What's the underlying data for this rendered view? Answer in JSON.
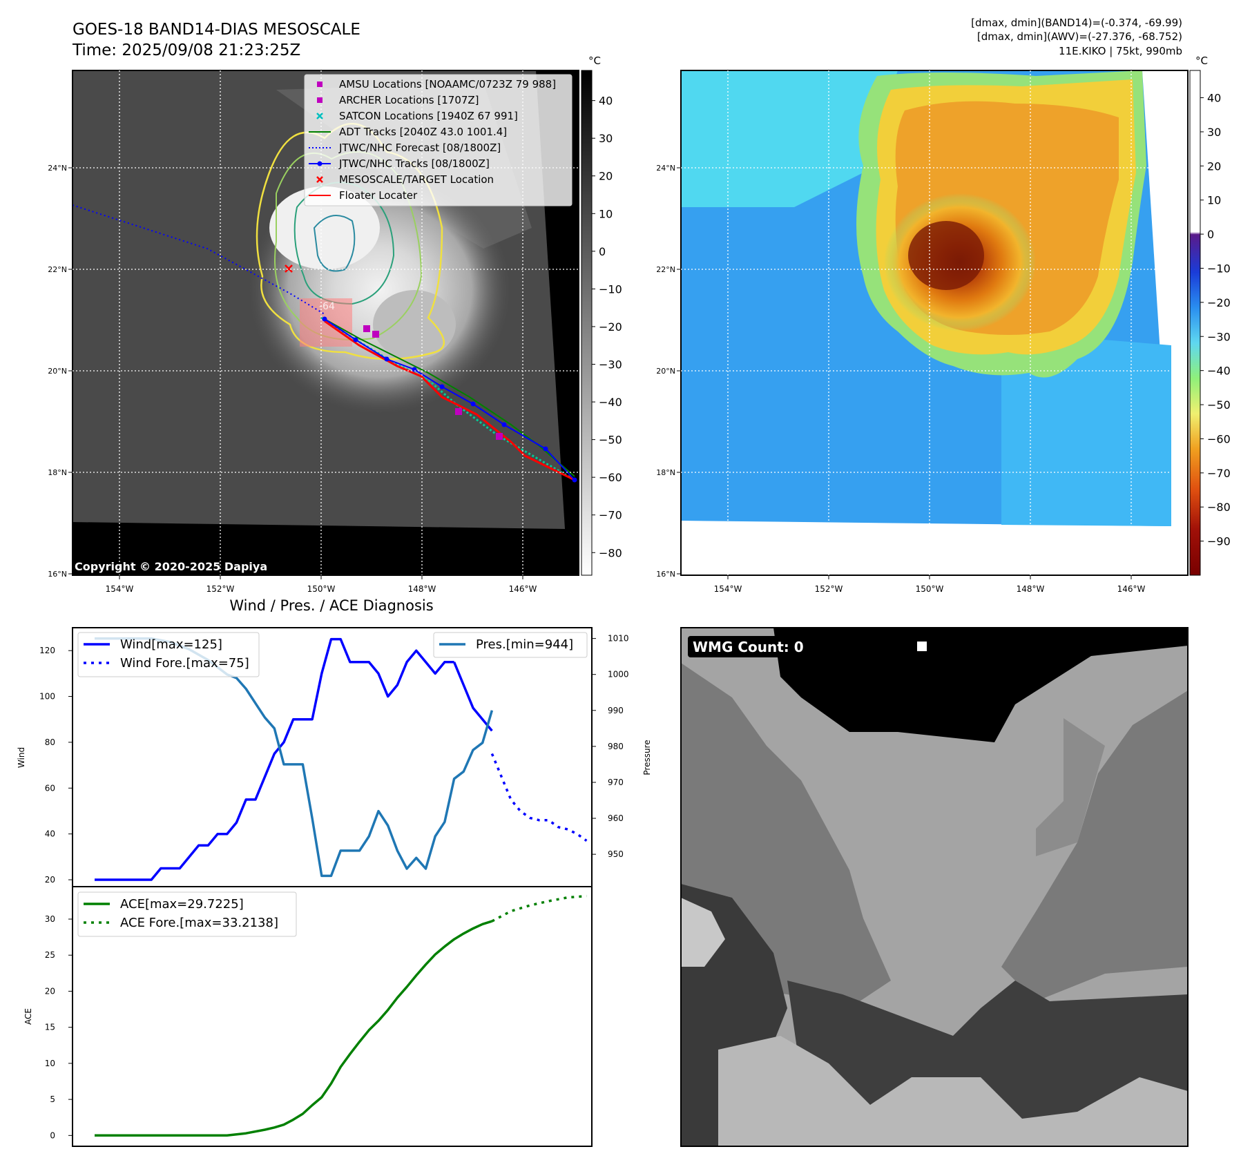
{
  "header": {
    "title_line1": "GOES-18 BAND14-DIAS MESOSCALE",
    "title_line2": "Time: 2025/09/08 21:23:25Z",
    "info_line1": "[dmax, dmin](BAND14)=(-0.374, -69.99)",
    "info_line2": "[dmax, dmin](AWV)=(-27.376, -68.752)",
    "info_line3": "11E.KIKO | 75kt, 990mb"
  },
  "maps": {
    "lon_ticks": [
      "154°W",
      "152°W",
      "150°W",
      "148°W",
      "146°W"
    ],
    "lat_ticks": [
      "24°N",
      "22°N",
      "20°N",
      "18°N",
      "16°N"
    ],
    "lon_values": [
      -154,
      -152,
      -150,
      -148,
      -146
    ],
    "lat_values": [
      24,
      22,
      20,
      18,
      16
    ],
    "copyright": "Copyright © 2020-2025 Dapiya",
    "colorbar_unit": "°C",
    "ir_colorbar_ticks": [
      "40",
      "30",
      "20",
      "10",
      "0",
      "−10",
      "−20",
      "−30",
      "−40",
      "−50",
      "−60",
      "−70",
      "−80"
    ],
    "ir_colorbar_values": [
      40,
      30,
      20,
      10,
      0,
      -10,
      -20,
      -30,
      -40,
      -50,
      -60,
      -70,
      -80
    ],
    "ir_colorbar_range": [
      48,
      -86
    ],
    "awv_colorbar_ticks": [
      "40",
      "30",
      "20",
      "10",
      "0",
      "−10",
      "−20",
      "−30",
      "−40",
      "−50",
      "−60",
      "−70",
      "−80",
      "−90"
    ],
    "awv_colorbar_values": [
      40,
      30,
      20,
      10,
      0,
      -10,
      -20,
      -30,
      -40,
      -50,
      -60,
      -70,
      -80,
      -90
    ],
    "awv_colorbar_range": [
      48,
      -100
    ],
    "legend": [
      {
        "label": "AMSU Locations [NOAAMC/0723Z 79 988]",
        "marker": "square",
        "color": "#bf00bf"
      },
      {
        "label": "ARCHER Locations [1707Z]",
        "marker": "square",
        "color": "#bf00bf"
      },
      {
        "label": "SATCON Locations [1940Z 67 991]",
        "marker": "x",
        "color": "#00bfbf"
      },
      {
        "label": "ADT Tracks [2040Z 43.0 1001.4]",
        "marker": "line",
        "color": "#008000"
      },
      {
        "label": "JTWC/NHC Forecast [08/1800Z]",
        "marker": "dotted",
        "color": "#0000ff"
      },
      {
        "label": "JTWC/NHC Tracks [08/1800Z]",
        "marker": "line-dot",
        "color": "#0000ff"
      },
      {
        "label": "MESOSCALE/TARGET Location",
        "marker": "x",
        "color": "#ff0000"
      },
      {
        "label": "Floater Locater",
        "marker": "line",
        "color": "#ff0000"
      }
    ],
    "target_label": "-64"
  },
  "wmg": {
    "label": "WMG Count: 0"
  },
  "chart_data": [
    {
      "type": "line",
      "title": "Wind / Pres. / ACE Diagnosis",
      "xlabel": "",
      "ylabel": "Wind",
      "ylabel_right": "Pressure",
      "ylim": [
        17,
        130
      ],
      "ylim_right": [
        941,
        1013
      ],
      "yticks": [
        20,
        40,
        60,
        80,
        100,
        120
      ],
      "yticks_right": [
        950,
        960,
        970,
        980,
        990,
        1000,
        1010
      ],
      "series": [
        {
          "name": "Wind[max=125]",
          "color": "#0000ff",
          "style": "solid",
          "x": [
            0,
            1,
            2,
            3,
            4,
            5,
            6,
            7,
            8,
            9,
            10,
            11,
            12,
            13,
            14,
            15,
            16,
            17,
            18,
            19,
            20,
            21,
            22,
            23,
            24,
            25,
            26,
            27,
            28,
            29,
            30,
            31,
            32,
            33,
            34,
            35,
            36,
            37,
            38
          ],
          "values": [
            20,
            20,
            20,
            20,
            20,
            20,
            20,
            25,
            25,
            25,
            30,
            35,
            35,
            40,
            40,
            45,
            55,
            55,
            65,
            75,
            80,
            90,
            90,
            90,
            110,
            125,
            125,
            115,
            115,
            115,
            110,
            100,
            105,
            115,
            120,
            115,
            110,
            115,
            115
          ]
        },
        {
          "name": "",
          "color": "#0000ff",
          "style": "solid",
          "x": [
            38,
            39,
            40,
            41,
            42
          ],
          "values": [
            115,
            105,
            95,
            90,
            85
          ]
        },
        {
          "name": "Wind Fore.[max=75]",
          "color": "#0000ff",
          "style": "dotted",
          "x": [
            42,
            43,
            44,
            45,
            46,
            47,
            48,
            49,
            50,
            51,
            52
          ],
          "values": [
            75,
            65,
            55,
            50,
            47,
            46,
            46,
            43,
            42,
            40,
            37
          ]
        },
        {
          "name": "Pres.[min=944]",
          "color": "#1f77b4",
          "style": "solid",
          "x": [
            0,
            2,
            4,
            6,
            8,
            10,
            12,
            13,
            14,
            15,
            16,
            17,
            18,
            19,
            20,
            21,
            22,
            23,
            24,
            25,
            26,
            27,
            28,
            29,
            30,
            31,
            32,
            33,
            34,
            35,
            36,
            37,
            38,
            39,
            40,
            41,
            42
          ],
          "values": [
            1010,
            1010,
            1010,
            1010,
            1009,
            1007,
            1004,
            1002,
            1000,
            999,
            996,
            992,
            988,
            985,
            975,
            975,
            975,
            960,
            944,
            944,
            951,
            951,
            951,
            955,
            962,
            958,
            951,
            946,
            949,
            946,
            955,
            959,
            971,
            973,
            979,
            981,
            990
          ]
        }
      ]
    },
    {
      "type": "line",
      "xlabel": "",
      "ylabel": "ACE",
      "ylim": [
        -1.5,
        34.5
      ],
      "yticks": [
        0,
        5,
        10,
        15,
        20,
        25,
        30
      ],
      "series": [
        {
          "name": "ACE[max=29.7225]",
          "color": "#008000",
          "style": "solid",
          "x": [
            0,
            3,
            6,
            9,
            12,
            14,
            16,
            18,
            19,
            20,
            21,
            22,
            23,
            24,
            25,
            26,
            27,
            28,
            29,
            30,
            31,
            32,
            33,
            34,
            35,
            36,
            37,
            38,
            39,
            40,
            41,
            42
          ],
          "values": [
            0,
            0,
            0,
            0,
            0,
            0,
            0.3,
            0.8,
            1.1,
            1.5,
            2.2,
            3.0,
            4.2,
            5.3,
            7.2,
            9.5,
            11.3,
            13.0,
            14.6,
            15.9,
            17.4,
            19.1,
            20.6,
            22.2,
            23.7,
            25.1,
            26.2,
            27.2,
            28.0,
            28.7,
            29.3,
            29.7
          ]
        },
        {
          "name": "ACE Fore.[max=33.2138]",
          "color": "#008000",
          "style": "dotted",
          "x": [
            42,
            44,
            46,
            48,
            50,
            52
          ],
          "values": [
            29.7,
            31.1,
            31.9,
            32.5,
            33.0,
            33.2
          ]
        }
      ]
    }
  ]
}
